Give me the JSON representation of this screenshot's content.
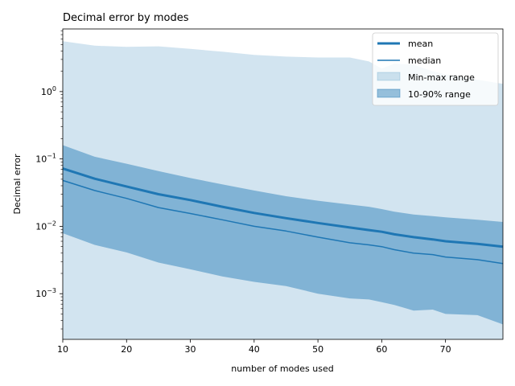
{
  "chart_data": {
    "type": "area",
    "title": "Decimal error by modes",
    "xlabel": "number of modes used",
    "ylabel": "Decimal error",
    "xlim": [
      10,
      79
    ],
    "ylim": [
      0.00021,
      8.5
    ],
    "yscale": "log",
    "grid": false,
    "legend_position": "top-right",
    "x_ticks": [
      10,
      20,
      30,
      40,
      50,
      60,
      70
    ],
    "y_ticks": [
      {
        "value": 0.001,
        "base": "10",
        "exp": "−3"
      },
      {
        "value": 0.01,
        "base": "10",
        "exp": "−2"
      },
      {
        "value": 0.1,
        "base": "10",
        "exp": "−1"
      },
      {
        "value": 1,
        "base": "10",
        "exp": "0"
      }
    ],
    "x": [
      10,
      15,
      20,
      25,
      30,
      35,
      40,
      45,
      50,
      55,
      58,
      60,
      62,
      65,
      68,
      70,
      75,
      79
    ],
    "series": [
      {
        "name": "mean",
        "role": "line",
        "color": "#1f77b4",
        "values": [
          0.072,
          0.051,
          0.039,
          0.03,
          0.0245,
          0.0195,
          0.0158,
          0.0132,
          0.0112,
          0.0096,
          0.0088,
          0.0083,
          0.0076,
          0.0069,
          0.0064,
          0.006,
          0.0055,
          0.005
        ]
      },
      {
        "name": "median",
        "role": "line",
        "color": "#1f77b4",
        "values": [
          0.048,
          0.034,
          0.026,
          0.019,
          0.0155,
          0.0125,
          0.01,
          0.0085,
          0.0069,
          0.0057,
          0.0053,
          0.005,
          0.0045,
          0.004,
          0.0038,
          0.0035,
          0.0032,
          0.0028
        ]
      },
      {
        "name": "Min-max range",
        "role": "band",
        "color": "#1f77b4",
        "opacity": 0.2,
        "lower": [
          0.00021,
          0.00021,
          0.00021,
          0.00021,
          0.00021,
          0.00021,
          0.00021,
          0.00021,
          0.00021,
          0.00021,
          0.00021,
          0.00021,
          0.00021,
          0.00021,
          0.00021,
          0.00021,
          0.00021,
          0.00021
        ],
        "upper": [
          5.6,
          4.8,
          4.6,
          4.7,
          4.3,
          3.9,
          3.5,
          3.3,
          3.2,
          3.2,
          2.8,
          2.2,
          2.6,
          2.5,
          2.0,
          1.8,
          1.5,
          1.3
        ]
      },
      {
        "name": "10-90% range",
        "role": "band",
        "color": "#1f77b4",
        "opacity": 0.45,
        "lower": [
          0.0079,
          0.0053,
          0.0041,
          0.0029,
          0.0023,
          0.0018,
          0.0015,
          0.0013,
          0.001,
          0.00085,
          0.00082,
          0.00075,
          0.00068,
          0.00056,
          0.00058,
          0.0005,
          0.00048,
          0.00035
        ],
        "upper": [
          0.16,
          0.108,
          0.085,
          0.066,
          0.052,
          0.042,
          0.034,
          0.028,
          0.024,
          0.021,
          0.0195,
          0.018,
          0.0165,
          0.015,
          0.0142,
          0.0136,
          0.0125,
          0.0116
        ]
      }
    ]
  }
}
